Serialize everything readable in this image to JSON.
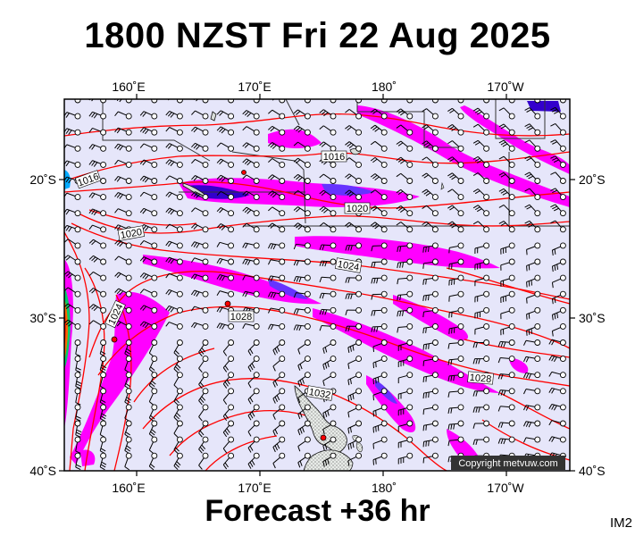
{
  "title": "1800 NZST Fri 22 Aug 2025",
  "subtitle": "Forecast +36 hr",
  "image_code": "IM2",
  "copyright": "Copyright metvuw.com",
  "map": {
    "lon_range": [
      155,
      175
    ],
    "lat_range": [
      -40,
      -15.5
    ],
    "top_lon_labels": [
      "160˚E",
      "170˚E",
      "180˚",
      "170˚W"
    ],
    "bottom_lon_labels": [
      "160˚E",
      "170˚E",
      "180˚",
      "170˚W"
    ],
    "left_lat_labels": [
      "20˚S",
      "30˚S",
      "40˚S"
    ],
    "right_lat_labels": [
      "20˚S",
      "30˚S",
      "40˚S"
    ],
    "isobar_labels": [
      "1016",
      "1016",
      "1020",
      "1020",
      "1024",
      "1024",
      "1028",
      "1028",
      "1032"
    ],
    "colors": {
      "ocean_background": "#e6e6fa",
      "isobar": "#ff0000",
      "rain_light": "#ff00ff",
      "rain_medium": "#9933ff",
      "rain_heavy": "#3300cc",
      "land": "#d8dcd8"
    }
  }
}
